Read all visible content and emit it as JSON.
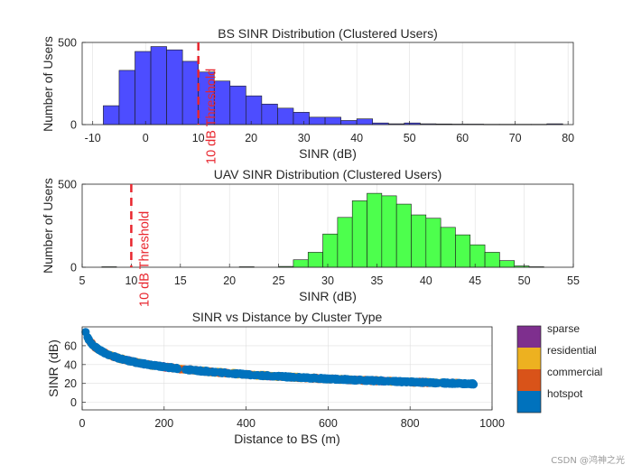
{
  "chart_data": [
    {
      "type": "bar",
      "subtype": "histogram",
      "title": "BS SINR Distribution (Clustered Users)",
      "xlabel": "SINR (dB)",
      "ylabel": "Number of Users",
      "xlim": [
        -12,
        81
      ],
      "ylim": [
        0,
        500
      ],
      "xticks": [
        -10,
        0,
        10,
        20,
        30,
        40,
        50,
        60,
        70,
        80
      ],
      "yticks": [
        0,
        500
      ],
      "grid": true,
      "bar_color": "#4d4dff",
      "bins": [
        {
          "x0": -8,
          "x1": -5,
          "count": 115
        },
        {
          "x0": -5,
          "x1": -2,
          "count": 330
        },
        {
          "x0": -2,
          "x1": 1,
          "count": 445
        },
        {
          "x0": 1,
          "x1": 4,
          "count": 475
        },
        {
          "x0": 4,
          "x1": 7,
          "count": 455
        },
        {
          "x0": 7,
          "x1": 10,
          "count": 385
        },
        {
          "x0": 10,
          "x1": 13,
          "count": 320
        },
        {
          "x0": 13,
          "x1": 16,
          "count": 265
        },
        {
          "x0": 16,
          "x1": 19,
          "count": 235
        },
        {
          "x0": 19,
          "x1": 22,
          "count": 175
        },
        {
          "x0": 22,
          "x1": 25,
          "count": 125
        },
        {
          "x0": 25,
          "x1": 28,
          "count": 100
        },
        {
          "x0": 28,
          "x1": 31,
          "count": 75
        },
        {
          "x0": 31,
          "x1": 34,
          "count": 45
        },
        {
          "x0": 34,
          "x1": 37,
          "count": 45
        },
        {
          "x0": 37,
          "x1": 40,
          "count": 25
        },
        {
          "x0": 40,
          "x1": 43,
          "count": 35
        },
        {
          "x0": 43,
          "x1": 46,
          "count": 10
        },
        {
          "x0": 46,
          "x1": 49,
          "count": 5
        },
        {
          "x0": 49,
          "x1": 52,
          "count": 10
        },
        {
          "x0": 52,
          "x1": 55,
          "count": 5
        },
        {
          "x0": 55,
          "x1": 58,
          "count": 4
        },
        {
          "x0": 58,
          "x1": 61,
          "count": 3
        },
        {
          "x0": 61,
          "x1": 64,
          "count": 3
        },
        {
          "x0": 64,
          "x1": 67,
          "count": 2
        },
        {
          "x0": 67,
          "x1": 70,
          "count": 2
        },
        {
          "x0": 70,
          "x1": 73,
          "count": 2
        },
        {
          "x0": 73,
          "x1": 76,
          "count": 2
        },
        {
          "x0": 76,
          "x1": 79,
          "count": 5
        }
      ],
      "threshold": {
        "x": 10,
        "label": "10 dB Threshold",
        "color": "#e8262e"
      }
    },
    {
      "type": "bar",
      "subtype": "histogram",
      "title": "UAV SINR Distribution (Clustered Users)",
      "xlabel": "SINR (dB)",
      "ylabel": "Number of Users",
      "xlim": [
        5,
        55
      ],
      "ylim": [
        0,
        500
      ],
      "xticks": [
        5,
        10,
        15,
        20,
        25,
        30,
        35,
        40,
        45,
        50,
        55
      ],
      "yticks": [
        0,
        500
      ],
      "grid": true,
      "bar_color": "#4dff4d",
      "bins": [
        {
          "x0": 7,
          "x1": 8.5,
          "count": 3
        },
        {
          "x0": 21,
          "x1": 22.5,
          "count": 3
        },
        {
          "x0": 25,
          "x1": 26.5,
          "count": 5
        },
        {
          "x0": 26.5,
          "x1": 28,
          "count": 45
        },
        {
          "x0": 28,
          "x1": 29.5,
          "count": 90
        },
        {
          "x0": 29.5,
          "x1": 31,
          "count": 200
        },
        {
          "x0": 31,
          "x1": 32.5,
          "count": 300
        },
        {
          "x0": 32.5,
          "x1": 34,
          "count": 400
        },
        {
          "x0": 34,
          "x1": 35.5,
          "count": 445
        },
        {
          "x0": 35.5,
          "x1": 37,
          "count": 430
        },
        {
          "x0": 37,
          "x1": 38.5,
          "count": 380
        },
        {
          "x0": 38.5,
          "x1": 40,
          "count": 315
        },
        {
          "x0": 40,
          "x1": 41.5,
          "count": 295
        },
        {
          "x0": 41.5,
          "x1": 43,
          "count": 240
        },
        {
          "x0": 43,
          "x1": 44.5,
          "count": 195
        },
        {
          "x0": 44.5,
          "x1": 46,
          "count": 135
        },
        {
          "x0": 46,
          "x1": 47.5,
          "count": 90
        },
        {
          "x0": 47.5,
          "x1": 49,
          "count": 40
        },
        {
          "x0": 49,
          "x1": 50.5,
          "count": 8
        },
        {
          "x0": 50.5,
          "x1": 52,
          "count": 3
        }
      ],
      "threshold": {
        "x": 10,
        "label": "10 dB Threshold",
        "color": "#e8262e"
      }
    },
    {
      "type": "scatter",
      "title": "SINR vs Distance by Cluster Type",
      "xlabel": "Distance to BS (m)",
      "ylabel": "SINR (dB)",
      "xlim": [
        0,
        1000
      ],
      "ylim": [
        -8,
        80
      ],
      "xticks": [
        0,
        200,
        400,
        600,
        800,
        1000
      ],
      "yticks": [
        0,
        20,
        40,
        60
      ],
      "grid": true,
      "curve": {
        "a": 80,
        "b": 11.5,
        "d0": 5
      },
      "series": [
        {
          "name": "hotspot",
          "color": "#0072bd",
          "x_range": [
            5,
            960
          ]
        },
        {
          "name": "commercial",
          "color": "#d95319",
          "x_range": [
            20,
            850
          ]
        },
        {
          "name": "residential",
          "color": "#edb120",
          "x_range": [
            15,
            950
          ]
        },
        {
          "name": "sparse",
          "color": "#7e2f8e",
          "x_range": [
            40,
            970
          ]
        }
      ],
      "legend": {
        "placement": "outside-right",
        "entries": [
          "sparse",
          "residential",
          "commercial",
          "hotspot"
        ]
      }
    }
  ],
  "watermark": "CSDN @鸿神之光"
}
